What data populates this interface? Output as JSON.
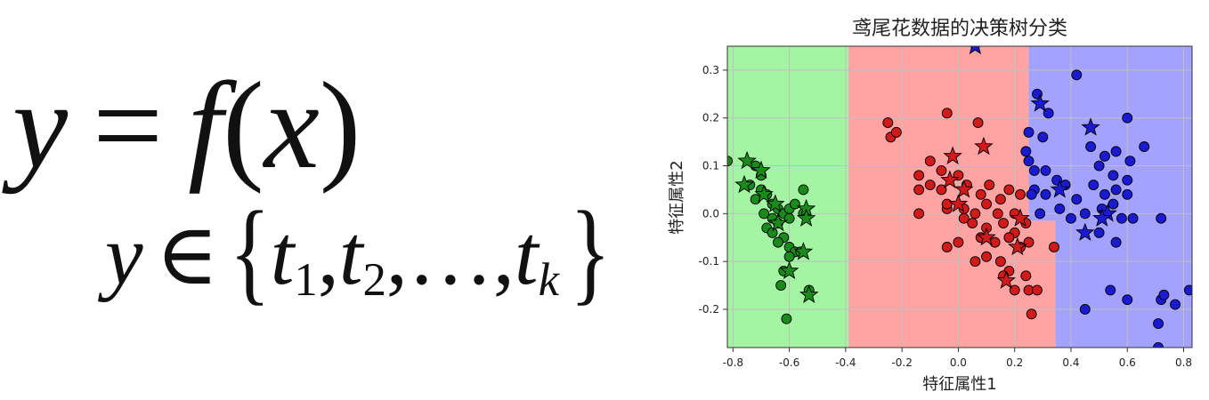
{
  "formula": {
    "line1": {
      "y": "y",
      "eq": "=",
      "f": "f",
      "lp": "(",
      "x": "x",
      "rp": ")"
    },
    "line2": {
      "y": "y",
      "in": "∈",
      "lbrace": "{",
      "rbrace": "}",
      "t": "t",
      "sub1": "1",
      "sub2": "2",
      "subk": "k",
      "comma": ",",
      "ellipsis": "…"
    }
  },
  "chart_data": {
    "type": "scatter",
    "title": "鸢尾花数据的决策树分类",
    "xlabel": "特征属性1",
    "ylabel": "特征属性2",
    "xlim": [
      -0.82,
      0.83
    ],
    "ylim": [
      -0.28,
      0.35
    ],
    "xticks": [
      -0.8,
      -0.6,
      -0.4,
      -0.2,
      0.0,
      0.2,
      0.4,
      0.6,
      0.8
    ],
    "yticks": [
      -0.2,
      -0.1,
      0.0,
      0.1,
      0.2,
      0.3
    ],
    "tick_labels_x": [
      "-0.8",
      "-0.6",
      "-0.4",
      "-0.2",
      "0.0",
      "0.2",
      "0.4",
      "0.6",
      "0.8"
    ],
    "tick_labels_y": [
      "-0.2",
      "-0.1",
      "0.0",
      "0.1",
      "0.2",
      "0.3"
    ],
    "grid": true,
    "regions": [
      {
        "class": "green",
        "color": "#a3f5a3",
        "x": [
          -0.82,
          -0.39
        ],
        "y": [
          -0.28,
          0.35
        ]
      },
      {
        "class": "red",
        "color": "#ffa3a3",
        "x": [
          -0.39,
          0.25
        ],
        "y": [
          -0.28,
          0.35
        ]
      },
      {
        "class": "red",
        "color": "#ffa3a3",
        "x": [
          0.25,
          0.345
        ],
        "y": [
          -0.28,
          -0.015
        ]
      },
      {
        "class": "blue",
        "color": "#a3a3ff",
        "x": [
          0.25,
          0.83
        ],
        "y": [
          0.0,
          0.35
        ]
      },
      {
        "class": "blue",
        "color": "#a3a3ff",
        "x": [
          0.345,
          0.83
        ],
        "y": [
          -0.28,
          0.0
        ]
      },
      {
        "class": "blue",
        "color": "#a3a3ff",
        "x": [
          0.25,
          0.345
        ],
        "y": [
          -0.015,
          0.0
        ]
      }
    ],
    "series": [
      {
        "class": "green",
        "color": "#1a8a1a",
        "circles": [
          [
            -0.82,
            0.11
          ],
          [
            -0.72,
            0.1
          ],
          [
            -0.7,
            0.08
          ],
          [
            -0.74,
            0.06
          ],
          [
            -0.7,
            0.05
          ],
          [
            -0.68,
            0.04
          ],
          [
            -0.72,
            0.03
          ],
          [
            -0.66,
            0.02
          ],
          [
            -0.64,
            0.01
          ],
          [
            -0.69,
            0.0
          ],
          [
            -0.66,
            -0.01
          ],
          [
            -0.62,
            0.0
          ],
          [
            -0.6,
            0.01
          ],
          [
            -0.58,
            0.02
          ],
          [
            -0.55,
            0.05
          ],
          [
            -0.6,
            -0.01
          ],
          [
            -0.64,
            -0.02
          ],
          [
            -0.68,
            -0.03
          ],
          [
            -0.66,
            -0.04
          ],
          [
            -0.62,
            -0.05
          ],
          [
            -0.64,
            -0.06
          ],
          [
            -0.6,
            -0.07
          ],
          [
            -0.58,
            -0.08
          ],
          [
            -0.6,
            -0.09
          ],
          [
            -0.62,
            -0.12
          ],
          [
            -0.63,
            -0.15
          ],
          [
            -0.53,
            -0.16
          ],
          [
            -0.61,
            -0.22
          ],
          [
            -0.55,
            0.0
          ],
          [
            -0.56,
            -0.08
          ]
        ],
        "stars": [
          [
            -0.75,
            0.11
          ],
          [
            -0.7,
            0.09
          ],
          [
            -0.76,
            0.06
          ],
          [
            -0.69,
            0.04
          ],
          [
            -0.65,
            0.02
          ],
          [
            -0.54,
            0.01
          ],
          [
            -0.64,
            -0.02
          ],
          [
            -0.55,
            -0.08
          ],
          [
            -0.6,
            -0.12
          ],
          [
            -0.53,
            -0.17
          ],
          [
            -0.54,
            -0.01
          ]
        ]
      },
      {
        "class": "red",
        "color": "#d11a1a",
        "circles": [
          [
            -0.25,
            0.19
          ],
          [
            -0.24,
            0.16
          ],
          [
            -0.22,
            0.17
          ],
          [
            -0.04,
            0.21
          ],
          [
            0.07,
            0.19
          ],
          [
            -0.1,
            0.11
          ],
          [
            -0.14,
            0.08
          ],
          [
            -0.06,
            0.09
          ],
          [
            -0.1,
            0.06
          ],
          [
            -0.14,
            0.05
          ],
          [
            -0.06,
            0.05
          ],
          [
            0.0,
            0.08
          ],
          [
            0.03,
            0.06
          ],
          [
            0.08,
            0.04
          ],
          [
            0.11,
            0.06
          ],
          [
            0.15,
            0.03
          ],
          [
            0.18,
            0.05
          ],
          [
            0.22,
            0.04
          ],
          [
            -0.14,
            0.0
          ],
          [
            -0.04,
            0.01
          ],
          [
            0.02,
            0.01
          ],
          [
            0.06,
            0.0
          ],
          [
            0.1,
            0.02
          ],
          [
            0.14,
            0.0
          ],
          [
            0.2,
            0.0
          ],
          [
            0.05,
            -0.02
          ],
          [
            0.1,
            -0.03
          ],
          [
            0.16,
            -0.02
          ],
          [
            0.2,
            -0.04
          ],
          [
            0.24,
            -0.02
          ],
          [
            0.0,
            -0.06
          ],
          [
            0.08,
            -0.05
          ],
          [
            0.13,
            -0.06
          ],
          [
            0.18,
            -0.05
          ],
          [
            0.22,
            -0.07
          ],
          [
            0.25,
            -0.06
          ],
          [
            -0.04,
            -0.07
          ],
          [
            0.06,
            -0.1
          ],
          [
            0.1,
            -0.09
          ],
          [
            0.15,
            -0.1
          ],
          [
            0.18,
            -0.12
          ],
          [
            0.24,
            -0.13
          ],
          [
            0.16,
            -0.13
          ],
          [
            0.2,
            -0.16
          ],
          [
            0.25,
            -0.16
          ],
          [
            0.28,
            -0.16
          ],
          [
            0.26,
            -0.21
          ],
          [
            0.34,
            -0.07
          ],
          [
            -0.04,
            0.02
          ],
          [
            0.02,
            -0.01
          ]
        ],
        "stars": [
          [
            -0.02,
            0.12
          ],
          [
            0.09,
            0.14
          ],
          [
            -0.03,
            0.07
          ],
          [
            0.02,
            0.05
          ],
          [
            0.0,
            0.02
          ],
          [
            0.1,
            -0.05
          ],
          [
            0.21,
            -0.07
          ],
          [
            0.17,
            -0.14
          ],
          [
            0.22,
            -0.01
          ]
        ]
      },
      {
        "class": "blue",
        "color": "#1a1ad1",
        "circles": [
          [
            0.28,
            0.25
          ],
          [
            0.32,
            0.21
          ],
          [
            0.25,
            0.17
          ],
          [
            0.3,
            0.16
          ],
          [
            0.25,
            0.11
          ],
          [
            0.27,
            0.09
          ],
          [
            0.31,
            0.09
          ],
          [
            0.35,
            0.07
          ],
          [
            0.27,
            0.05
          ],
          [
            0.31,
            0.04
          ],
          [
            0.38,
            0.06
          ],
          [
            0.42,
            0.03
          ],
          [
            0.29,
            0.0
          ],
          [
            0.36,
            0.01
          ],
          [
            0.4,
            -0.01
          ],
          [
            0.45,
            0.0
          ],
          [
            0.42,
            0.29
          ],
          [
            0.6,
            0.2
          ],
          [
            0.47,
            0.14
          ],
          [
            0.52,
            0.12
          ],
          [
            0.56,
            0.13
          ],
          [
            0.5,
            0.1
          ],
          [
            0.55,
            0.08
          ],
          [
            0.61,
            0.11
          ],
          [
            0.48,
            0.06
          ],
          [
            0.52,
            0.04
          ],
          [
            0.56,
            0.05
          ],
          [
            0.6,
            0.07
          ],
          [
            0.51,
            0.01
          ],
          [
            0.55,
            0.02
          ],
          [
            0.6,
            0.04
          ],
          [
            0.58,
            -0.01
          ],
          [
            0.62,
            -0.01
          ],
          [
            0.5,
            -0.04
          ],
          [
            0.56,
            -0.06
          ],
          [
            0.72,
            -0.01
          ],
          [
            0.45,
            -0.2
          ],
          [
            0.54,
            -0.16
          ],
          [
            0.6,
            -0.18
          ],
          [
            0.72,
            -0.18
          ],
          [
            0.73,
            -0.17
          ],
          [
            0.77,
            -0.19
          ],
          [
            0.71,
            -0.23
          ],
          [
            0.71,
            -0.28
          ],
          [
            0.82,
            -0.16
          ],
          [
            0.24,
            0.13
          ],
          [
            0.66,
            0.14
          ],
          [
            0.26,
            0.04
          ]
        ],
        "stars": [
          [
            0.06,
            0.35
          ],
          [
            0.29,
            0.23
          ],
          [
            0.47,
            0.18
          ],
          [
            0.36,
            0.05
          ],
          [
            0.53,
            0.0
          ],
          [
            0.51,
            -0.01
          ],
          [
            0.45,
            -0.04
          ]
        ]
      }
    ]
  }
}
